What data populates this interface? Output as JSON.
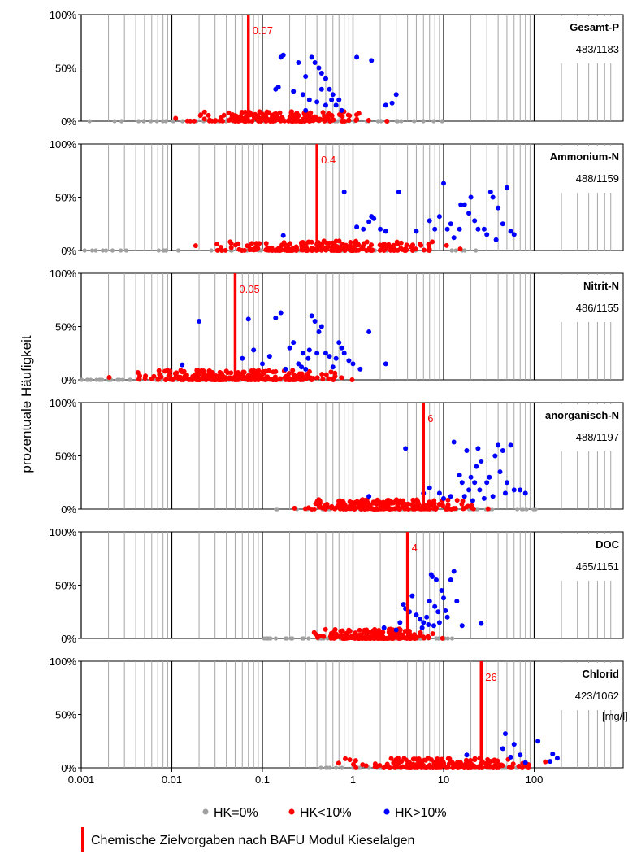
{
  "chart_data": {
    "type": "scatter",
    "ylabel": "prozentuale Häufigkeit",
    "x_unit_label": "[mg/l]",
    "xscale": "log",
    "xlim": [
      0.001,
      700
    ],
    "ylim": [
      0,
      100
    ],
    "x_ticks": [
      {
        "value": 0.001,
        "label": "0.001"
      },
      {
        "value": 0.01,
        "label": "0.01"
      },
      {
        "value": 0.1,
        "label": "0.1"
      },
      {
        "value": 1,
        "label": "1"
      },
      {
        "value": 10,
        "label": "10"
      },
      {
        "value": 100,
        "label": "100"
      }
    ],
    "y_ticks": [
      {
        "value": 0,
        "label": "0%"
      },
      {
        "value": 50,
        "label": "50%"
      },
      {
        "value": 100,
        "label": "100%"
      }
    ],
    "colors": {
      "hk0": "#a0a0a0",
      "hk10": "#ff0000",
      "hk_gt10": "#0000ff",
      "target": "#ff0000"
    },
    "legend": {
      "placement": "bottom",
      "items": [
        {
          "label": "HK=0%",
          "color": "#a0a0a0"
        },
        {
          "label": "HK<10%",
          "color": "#ff0000"
        },
        {
          "label": "HK>10%",
          "color": "#0000ff"
        }
      ],
      "target_label": "Chemische Zielvorgaben nach BAFU Modul Kieselalgen"
    },
    "panels": [
      {
        "name": "Gesamt-P",
        "count": "483/1183",
        "target": {
          "value": 0.07,
          "label": "0.07"
        },
        "gray_range": [
          0.001,
          10
        ],
        "red_range": [
          0.008,
          3
        ],
        "red_n": 220,
        "blue": [
          [
            0.14,
            30
          ],
          [
            0.16,
            60
          ],
          [
            0.17,
            62
          ],
          [
            0.15,
            32
          ],
          [
            0.25,
            55
          ],
          [
            0.3,
            42
          ],
          [
            0.35,
            60
          ],
          [
            0.38,
            55
          ],
          [
            0.42,
            50
          ],
          [
            0.45,
            45
          ],
          [
            0.5,
            40
          ],
          [
            0.3,
            10
          ],
          [
            0.28,
            25
          ],
          [
            0.33,
            20
          ],
          [
            0.4,
            18
          ],
          [
            0.45,
            30
          ],
          [
            0.55,
            30
          ],
          [
            0.6,
            25
          ],
          [
            0.7,
            20
          ],
          [
            0.65,
            15
          ],
          [
            0.75,
            10
          ],
          [
            0.5,
            15
          ],
          [
            0.58,
            20
          ],
          [
            1.1,
            60
          ],
          [
            1.6,
            57
          ],
          [
            2.7,
            17
          ],
          [
            3.0,
            25
          ],
          [
            2.3,
            15
          ],
          [
            0.22,
            28
          ]
        ]
      },
      {
        "name": "Ammonium-N",
        "count": "488/1159",
        "target": {
          "value": 0.4,
          "label": "0.4"
        },
        "gray_range": [
          0.001,
          30
        ],
        "red_range": [
          0.01,
          25
        ],
        "red_n": 230,
        "blue": [
          [
            0.17,
            14
          ],
          [
            0.8,
            55
          ],
          [
            1.1,
            22
          ],
          [
            1.3,
            20
          ],
          [
            1.5,
            27
          ],
          [
            1.6,
            32
          ],
          [
            1.7,
            30
          ],
          [
            2,
            20
          ],
          [
            2.3,
            18
          ],
          [
            3.2,
            55
          ],
          [
            5,
            18
          ],
          [
            7,
            28
          ],
          [
            8,
            20
          ],
          [
            9,
            32
          ],
          [
            10,
            63
          ],
          [
            11,
            20
          ],
          [
            12,
            25
          ],
          [
            13,
            12
          ],
          [
            15,
            20
          ],
          [
            15.5,
            43
          ],
          [
            17,
            43
          ],
          [
            19,
            35
          ],
          [
            20,
            50
          ],
          [
            22,
            28
          ],
          [
            24,
            20
          ],
          [
            28,
            20
          ],
          [
            30,
            15
          ],
          [
            33,
            55
          ],
          [
            35,
            50
          ],
          [
            38,
            10
          ],
          [
            40,
            40
          ],
          [
            45,
            25
          ],
          [
            50,
            59
          ],
          [
            55,
            18
          ],
          [
            60,
            15
          ]
        ]
      },
      {
        "name": "Nitrit-N",
        "count": "486/1155",
        "target": {
          "value": 0.05,
          "label": "0.05"
        },
        "gray_range": [
          0.001,
          0.3
        ],
        "red_range": [
          0.001,
          1.8
        ],
        "red_n": 240,
        "blue": [
          [
            0.013,
            14
          ],
          [
            0.02,
            55
          ],
          [
            0.06,
            20
          ],
          [
            0.07,
            57
          ],
          [
            0.08,
            28
          ],
          [
            0.1,
            15
          ],
          [
            0.12,
            22
          ],
          [
            0.14,
            58
          ],
          [
            0.16,
            63
          ],
          [
            0.18,
            10
          ],
          [
            0.2,
            30
          ],
          [
            0.22,
            35
          ],
          [
            0.25,
            15
          ],
          [
            0.28,
            25
          ],
          [
            0.3,
            10
          ],
          [
            0.32,
            20
          ],
          [
            0.35,
            60
          ],
          [
            0.38,
            55
          ],
          [
            0.4,
            25
          ],
          [
            0.42,
            45
          ],
          [
            0.45,
            50
          ],
          [
            0.5,
            25
          ],
          [
            0.55,
            22
          ],
          [
            0.6,
            12
          ],
          [
            0.65,
            20
          ],
          [
            0.7,
            35
          ],
          [
            0.75,
            30
          ],
          [
            0.8,
            25
          ],
          [
            0.9,
            18
          ],
          [
            1.0,
            15
          ],
          [
            1.2,
            10
          ],
          [
            1.5,
            45
          ],
          [
            2.3,
            15
          ],
          [
            0.33,
            28
          ],
          [
            0.27,
            12
          ]
        ]
      },
      {
        "name": "anorganisch-N",
        "count": "488/1197",
        "target": {
          "value": 6,
          "label": "6"
        },
        "gray_range": [
          0.13,
          120
        ],
        "red_range": [
          0.13,
          55
        ],
        "red_n": 230,
        "blue": [
          [
            1.5,
            12
          ],
          [
            3.8,
            57
          ],
          [
            6,
            15
          ],
          [
            7,
            20
          ],
          [
            9,
            15
          ],
          [
            10,
            10
          ],
          [
            12,
            12
          ],
          [
            13,
            63
          ],
          [
            15,
            32
          ],
          [
            16,
            25
          ],
          [
            18,
            55
          ],
          [
            19,
            18
          ],
          [
            20,
            30
          ],
          [
            22,
            25
          ],
          [
            23,
            40
          ],
          [
            24,
            57
          ],
          [
            25,
            18
          ],
          [
            26,
            45
          ],
          [
            28,
            10
          ],
          [
            30,
            25
          ],
          [
            32,
            30
          ],
          [
            35,
            12
          ],
          [
            37,
            50
          ],
          [
            40,
            60
          ],
          [
            42,
            35
          ],
          [
            45,
            55
          ],
          [
            48,
            15
          ],
          [
            50,
            25
          ],
          [
            55,
            60
          ],
          [
            60,
            18
          ],
          [
            70,
            18
          ],
          [
            80,
            15
          ],
          [
            17,
            12
          ],
          [
            21,
            8
          ]
        ]
      },
      {
        "name": "DOC",
        "count": "465/1151",
        "target": {
          "value": 4,
          "label": "4"
        },
        "gray_range": [
          0.1,
          13
        ],
        "red_range": [
          0.2,
          14
        ],
        "red_n": 210,
        "blue": [
          [
            2.2,
            10
          ],
          [
            3,
            8
          ],
          [
            3.3,
            15
          ],
          [
            3.6,
            32
          ],
          [
            3.8,
            28
          ],
          [
            4.2,
            25
          ],
          [
            4.5,
            40
          ],
          [
            5,
            22
          ],
          [
            5.5,
            18
          ],
          [
            6,
            15
          ],
          [
            6.5,
            20
          ],
          [
            7,
            35
          ],
          [
            7.3,
            60
          ],
          [
            7.5,
            58
          ],
          [
            8,
            30
          ],
          [
            8.3,
            55
          ],
          [
            8.7,
            25
          ],
          [
            9,
            15
          ],
          [
            9.5,
            45
          ],
          [
            10,
            38
          ],
          [
            11,
            20
          ],
          [
            12,
            55
          ],
          [
            13,
            63
          ],
          [
            14,
            35
          ],
          [
            16,
            12
          ],
          [
            26,
            14
          ],
          [
            5.8,
            10
          ],
          [
            7.8,
            12
          ],
          [
            6.8,
            13
          ],
          [
            10.5,
            26
          ]
        ]
      },
      {
        "name": "Chlorid",
        "count": "423/1062",
        "target": {
          "value": 26,
          "label": "26"
        },
        "gray_range": [
          0.4,
          80
        ],
        "red_range": [
          0.5,
          250
        ],
        "red_n": 230,
        "blue": [
          [
            18,
            12
          ],
          [
            45,
            18
          ],
          [
            48,
            32
          ],
          [
            55,
            10
          ],
          [
            60,
            22
          ],
          [
            70,
            12
          ],
          [
            80,
            5
          ],
          [
            110,
            25
          ],
          [
            160,
            13
          ],
          [
            180,
            9
          ],
          [
            150,
            6
          ]
        ]
      }
    ]
  }
}
